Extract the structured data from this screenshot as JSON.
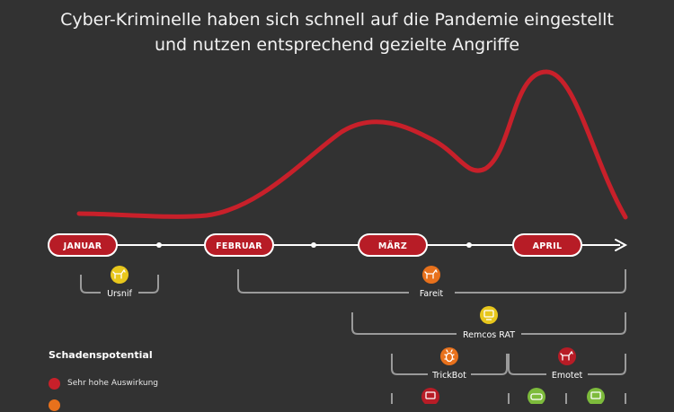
{
  "title": {
    "line1": "Cyber-Kriminelle haben sich schnell auf die Pandemie eingestellt",
    "line2": "und nutzen entsprechend gezielte Angriffe"
  },
  "timeline": {
    "months": [
      "JANUAR",
      "FEBRUAR",
      "MÄRZ",
      "APRIL"
    ]
  },
  "colors": {
    "background": "#323232",
    "curve": "#c8202a",
    "pill": "#b71c26",
    "very_high": "#c8202a",
    "high": "#e8711c",
    "medium": "#e8c71c",
    "low": "#7dbb3c"
  },
  "malware": [
    {
      "name": "Ursnif",
      "icon": "horse-icon",
      "severity": "medium",
      "label_shown": true
    },
    {
      "name": "Fareit",
      "icon": "horse-icon",
      "severity": "high",
      "label_shown": true
    },
    {
      "name": "Remcos RAT",
      "icon": "monitor-icon",
      "severity": "medium",
      "label_shown": true
    },
    {
      "name": "TrickBot",
      "icon": "bug-icon",
      "severity": "high",
      "label_shown": true
    },
    {
      "name": "Emotet",
      "icon": "horse-icon",
      "severity": "very_high",
      "label_shown": true
    },
    {
      "name": "",
      "icon": "monitor-icon",
      "severity": "very_high",
      "label_shown": false
    },
    {
      "name": "",
      "icon": "car-icon",
      "severity": "low",
      "label_shown": false
    },
    {
      "name": "",
      "icon": "monitor-icon",
      "severity": "low",
      "label_shown": false
    }
  ],
  "legend": {
    "title": "Schadenspotential",
    "items": [
      {
        "label": "Sehr hohe Auswirkung",
        "severity": "very_high"
      },
      {
        "label": "",
        "severity": "high"
      }
    ]
  }
}
